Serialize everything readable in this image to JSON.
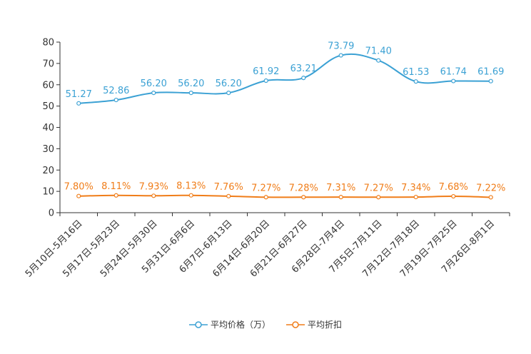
{
  "chart_data": {
    "type": "line",
    "title": "",
    "xlabel": "",
    "ylabel": "",
    "ylim": [
      0,
      80
    ],
    "yticks": [
      0,
      10,
      20,
      30,
      40,
      50,
      60,
      70,
      80
    ],
    "categories": [
      "5月10日-5月16日",
      "5月17日-5月23日",
      "5月24日-5月30日",
      "5月31日-6月6日",
      "6月7日-6月13日",
      "6月14日-6月20日",
      "6月21日-6月27日",
      "6月28日-7月4日",
      "7月5日-7月11日",
      "7月12日-7月18日",
      "7月19日-7月25日",
      "7月26日-8月1日"
    ],
    "series": [
      {
        "name": "平均价格（万）",
        "color": "#3ba1d4",
        "values": [
          51.27,
          52.86,
          56.2,
          56.2,
          56.2,
          61.92,
          63.21,
          73.79,
          71.4,
          61.53,
          61.74,
          61.69
        ],
        "labels": [
          "51.27",
          "52.86",
          "56.20",
          "56.20",
          "56.20",
          "61.92",
          "63.21",
          "73.79",
          "71.40",
          "61.53",
          "61.74",
          "61.69"
        ]
      },
      {
        "name": "平均折扣",
        "color": "#f07d19",
        "values": [
          7.8,
          8.11,
          7.93,
          8.13,
          7.76,
          7.27,
          7.28,
          7.31,
          7.27,
          7.34,
          7.68,
          7.22
        ],
        "labels": [
          "7.80%",
          "8.11%",
          "7.93%",
          "8.13%",
          "7.76%",
          "7.27%",
          "7.28%",
          "7.31%",
          "7.27%",
          "7.34%",
          "7.68%",
          "7.22%"
        ]
      }
    ],
    "legend_position": "bottom-center",
    "grid": false
  }
}
